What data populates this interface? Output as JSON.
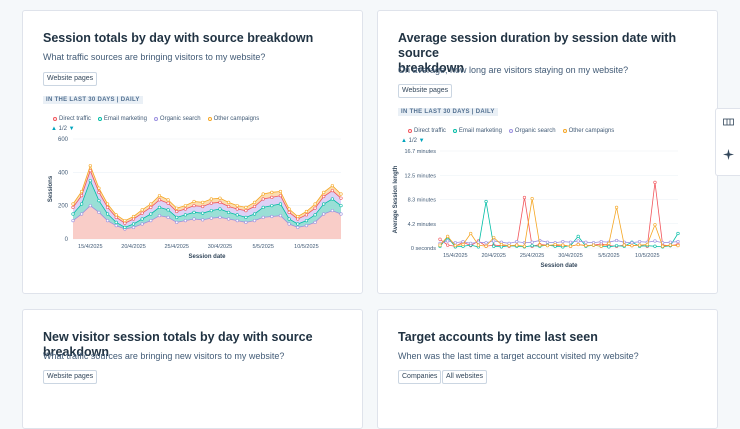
{
  "cards": [
    {
      "title": "Session totals by day with source breakdown",
      "description": "What traffic sources are bringing visitors to my website?",
      "tags": [
        "Website pages"
      ],
      "range": "IN THE LAST 30 DAYS | DAILY",
      "pager": "1/2"
    },
    {
      "title_lines": [
        "Average session duration by session date with source",
        "breakdown"
      ],
      "description": "On average, how long are visitors staying on my website?",
      "tags": [
        "Website pages"
      ],
      "range": "IN THE LAST 30 DAYS | DAILY",
      "pager": "1/2"
    },
    {
      "title": "New visitor session totals by day with source breakdown",
      "description": "What traffic sources are bringing new visitors to my website?",
      "tags": [
        "Website pages"
      ]
    },
    {
      "title": "Target accounts by time last seen",
      "description": "When was the last time a target account visited my website?",
      "tags": [
        "Companies",
        "All websites"
      ]
    }
  ],
  "legend": [
    {
      "name": "Direct traffic",
      "color": "#f2545b"
    },
    {
      "name": "Email marketing",
      "color": "#00bda5"
    },
    {
      "name": "Organic search",
      "color": "#9b8fe0"
    },
    {
      "name": "Other campaigns",
      "color": "#f5a623"
    }
  ],
  "icons": {
    "sidebar": [
      "grid-icon",
      "sparkle-icon"
    ]
  },
  "chart_data": [
    {
      "type": "area",
      "xlabel": "Session date",
      "ylabel": "Sessions",
      "ylim": [
        0,
        600
      ],
      "yticks": [
        "600",
        "400",
        "200",
        "0"
      ],
      "xticks": [
        "15/4/2025",
        "20/4/2025",
        "25/4/2025",
        "30/4/2025",
        "5/5/2025",
        "10/5/2025"
      ],
      "x": [
        "13/4",
        "14/4",
        "15/4",
        "16/4",
        "17/4",
        "18/4",
        "19/4",
        "20/4",
        "21/4",
        "22/4",
        "23/4",
        "24/4",
        "25/4",
        "26/4",
        "27/4",
        "28/4",
        "29/4",
        "30/4",
        "1/5",
        "2/5",
        "3/5",
        "4/5",
        "5/5",
        "6/5",
        "7/5",
        "8/5",
        "9/5",
        "10/5",
        "11/5",
        "12/5",
        "13/5",
        "14/5"
      ],
      "series": [
        {
          "name": "Organic search",
          "values": [
            110,
            150,
            200,
            160,
            110,
            80,
            60,
            70,
            90,
            110,
            140,
            130,
            100,
            110,
            120,
            115,
            125,
            130,
            120,
            110,
            100,
            110,
            130,
            135,
            140,
            90,
            70,
            80,
            100,
            150,
            170,
            150
          ]
        },
        {
          "name": "Email marketing",
          "values": [
            40,
            60,
            150,
            70,
            40,
            20,
            10,
            20,
            30,
            40,
            50,
            45,
            30,
            35,
            40,
            40,
            45,
            50,
            40,
            35,
            30,
            40,
            60,
            65,
            70,
            30,
            20,
            30,
            45,
            60,
            70,
            50
          ]
        },
        {
          "name": "Direct traffic",
          "values": [
            40,
            50,
            60,
            50,
            40,
            30,
            25,
            30,
            35,
            40,
            45,
            40,
            35,
            35,
            40,
            40,
            45,
            40,
            35,
            35,
            40,
            45,
            50,
            50,
            50,
            40,
            30,
            35,
            40,
            45,
            50,
            45
          ]
        },
        {
          "name": "Other campaigns",
          "values": [
            20,
            25,
            30,
            25,
            20,
            15,
            15,
            15,
            20,
            20,
            25,
            20,
            20,
            20,
            25,
            25,
            25,
            25,
            25,
            20,
            20,
            25,
            30,
            30,
            25,
            20,
            15,
            20,
            25,
            25,
            30,
            25
          ]
        }
      ]
    },
    {
      "type": "line",
      "xlabel": "Session date",
      "ylabel": "Average Session length",
      "yticks": [
        "16.7 minutes",
        "12.5 minutes",
        "8.3 minutes",
        "4.2 minutes",
        "0 seconds"
      ],
      "ylim": [
        0,
        16.7
      ],
      "xticks": [
        "15/4/2025",
        "20/4/2025",
        "25/4/2025",
        "30/4/2025",
        "5/5/2025",
        "10/5/2025"
      ],
      "x": [
        "13/4",
        "14/4",
        "15/4",
        "16/4",
        "17/4",
        "18/4",
        "19/4",
        "20/4",
        "21/4",
        "22/4",
        "23/4",
        "24/4",
        "25/4",
        "26/4",
        "27/4",
        "28/4",
        "29/4",
        "30/4",
        "1/5",
        "2/5",
        "3/5",
        "4/5",
        "5/5",
        "6/5",
        "7/5",
        "8/5",
        "9/5",
        "10/5",
        "11/5",
        "12/5",
        "13/5",
        "14/5"
      ],
      "series": [
        {
          "name": "Direct traffic",
          "values": [
            1.5,
            0.5,
            0.3,
            1.0,
            0.4,
            1.2,
            0.3,
            0.5,
            0.4,
            0.3,
            0.5,
            8.7,
            0.3,
            0.6,
            0.5,
            0.4,
            0.5,
            0.3,
            0.6,
            0.4,
            0.5,
            0.7,
            0.4,
            0.3,
            0.5,
            0.4,
            0.5,
            0.3,
            11.3,
            0.5,
            0.4,
            0.6
          ]
        },
        {
          "name": "Email marketing",
          "values": [
            0.3,
            1.8,
            0.2,
            0.3,
            0.5,
            0.2,
            8.0,
            0.3,
            0.2,
            0.4,
            0.3,
            0.2,
            0.4,
            0.3,
            0.5,
            0.3,
            0.2,
            0.4,
            2.0,
            0.3,
            0.5,
            0.3,
            0.2,
            0.4,
            0.3,
            1.0,
            0.3,
            0.4,
            0.3,
            0.2,
            0.4,
            2.5
          ]
        },
        {
          "name": "Organic search",
          "values": [
            0.8,
            1.2,
            0.9,
            1.1,
            0.8,
            1.0,
            0.9,
            1.2,
            1.0,
            0.8,
            1.1,
            0.9,
            1.0,
            1.3,
            1.0,
            0.9,
            1.1,
            1.0,
            1.2,
            1.0,
            0.9,
            1.1,
            1.0,
            1.3,
            1.0,
            0.9,
            1.1,
            1.0,
            1.2,
            0.9,
            1.0,
            1.1
          ]
        },
        {
          "name": "Other campaigns",
          "values": [
            0.5,
            2.0,
            0.4,
            0.6,
            2.5,
            0.5,
            0.3,
            1.8,
            0.6,
            0.4,
            0.5,
            0.3,
            8.5,
            0.5,
            0.4,
            0.6,
            0.5,
            0.3,
            0.6,
            0.4,
            0.5,
            0.3,
            0.8,
            7.0,
            0.5,
            0.4,
            0.5,
            0.6,
            4.0,
            0.3,
            0.5,
            0.4
          ]
        }
      ]
    }
  ]
}
